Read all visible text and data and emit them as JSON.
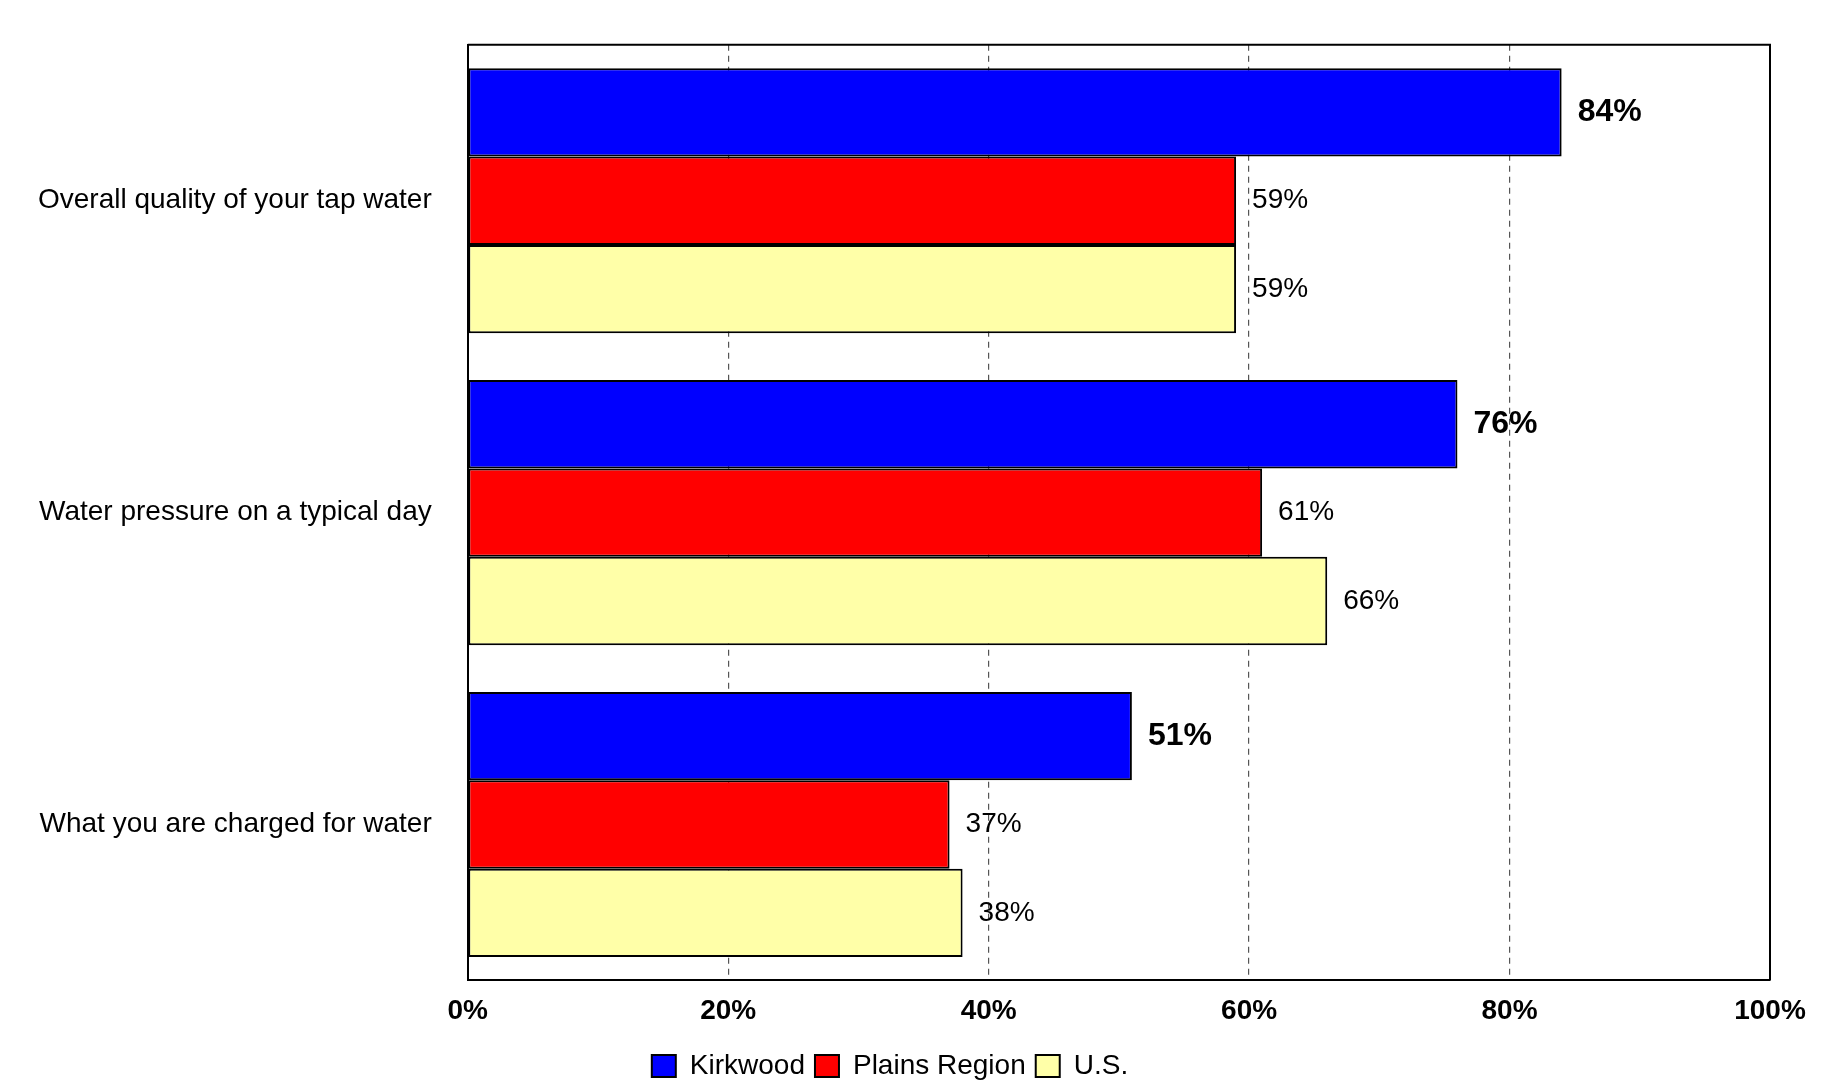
{
  "chart_data": {
    "type": "bar",
    "orientation": "horizontal",
    "categories": [
      "Overall quality of your tap water",
      "Water pressure on a typical day",
      "What you are charged for water"
    ],
    "series": [
      {
        "name": "Kirkwood",
        "color": "#0000ff",
        "values": [
          84,
          76,
          51
        ],
        "value_labels": [
          "84%",
          "76%",
          "51%"
        ]
      },
      {
        "name": "Plains Region",
        "color": "#ff0000",
        "values": [
          59,
          61,
          37
        ],
        "value_labels": [
          "59%",
          "61%",
          "37%"
        ]
      },
      {
        "name": "U.S.",
        "color": "#ffffa8",
        "values": [
          59,
          66,
          38
        ],
        "value_labels": [
          "59%",
          "66%",
          "38%"
        ]
      }
    ],
    "xlim": [
      0,
      100
    ],
    "xticks": [
      {
        "value": 0,
        "label": "0%"
      },
      {
        "value": 20,
        "label": "20%"
      },
      {
        "value": 40,
        "label": "40%"
      },
      {
        "value": 60,
        "label": "60%"
      },
      {
        "value": 80,
        "label": "80%"
      },
      {
        "value": 100,
        "label": "100%"
      }
    ],
    "grid": "x",
    "legend": "bottom"
  }
}
